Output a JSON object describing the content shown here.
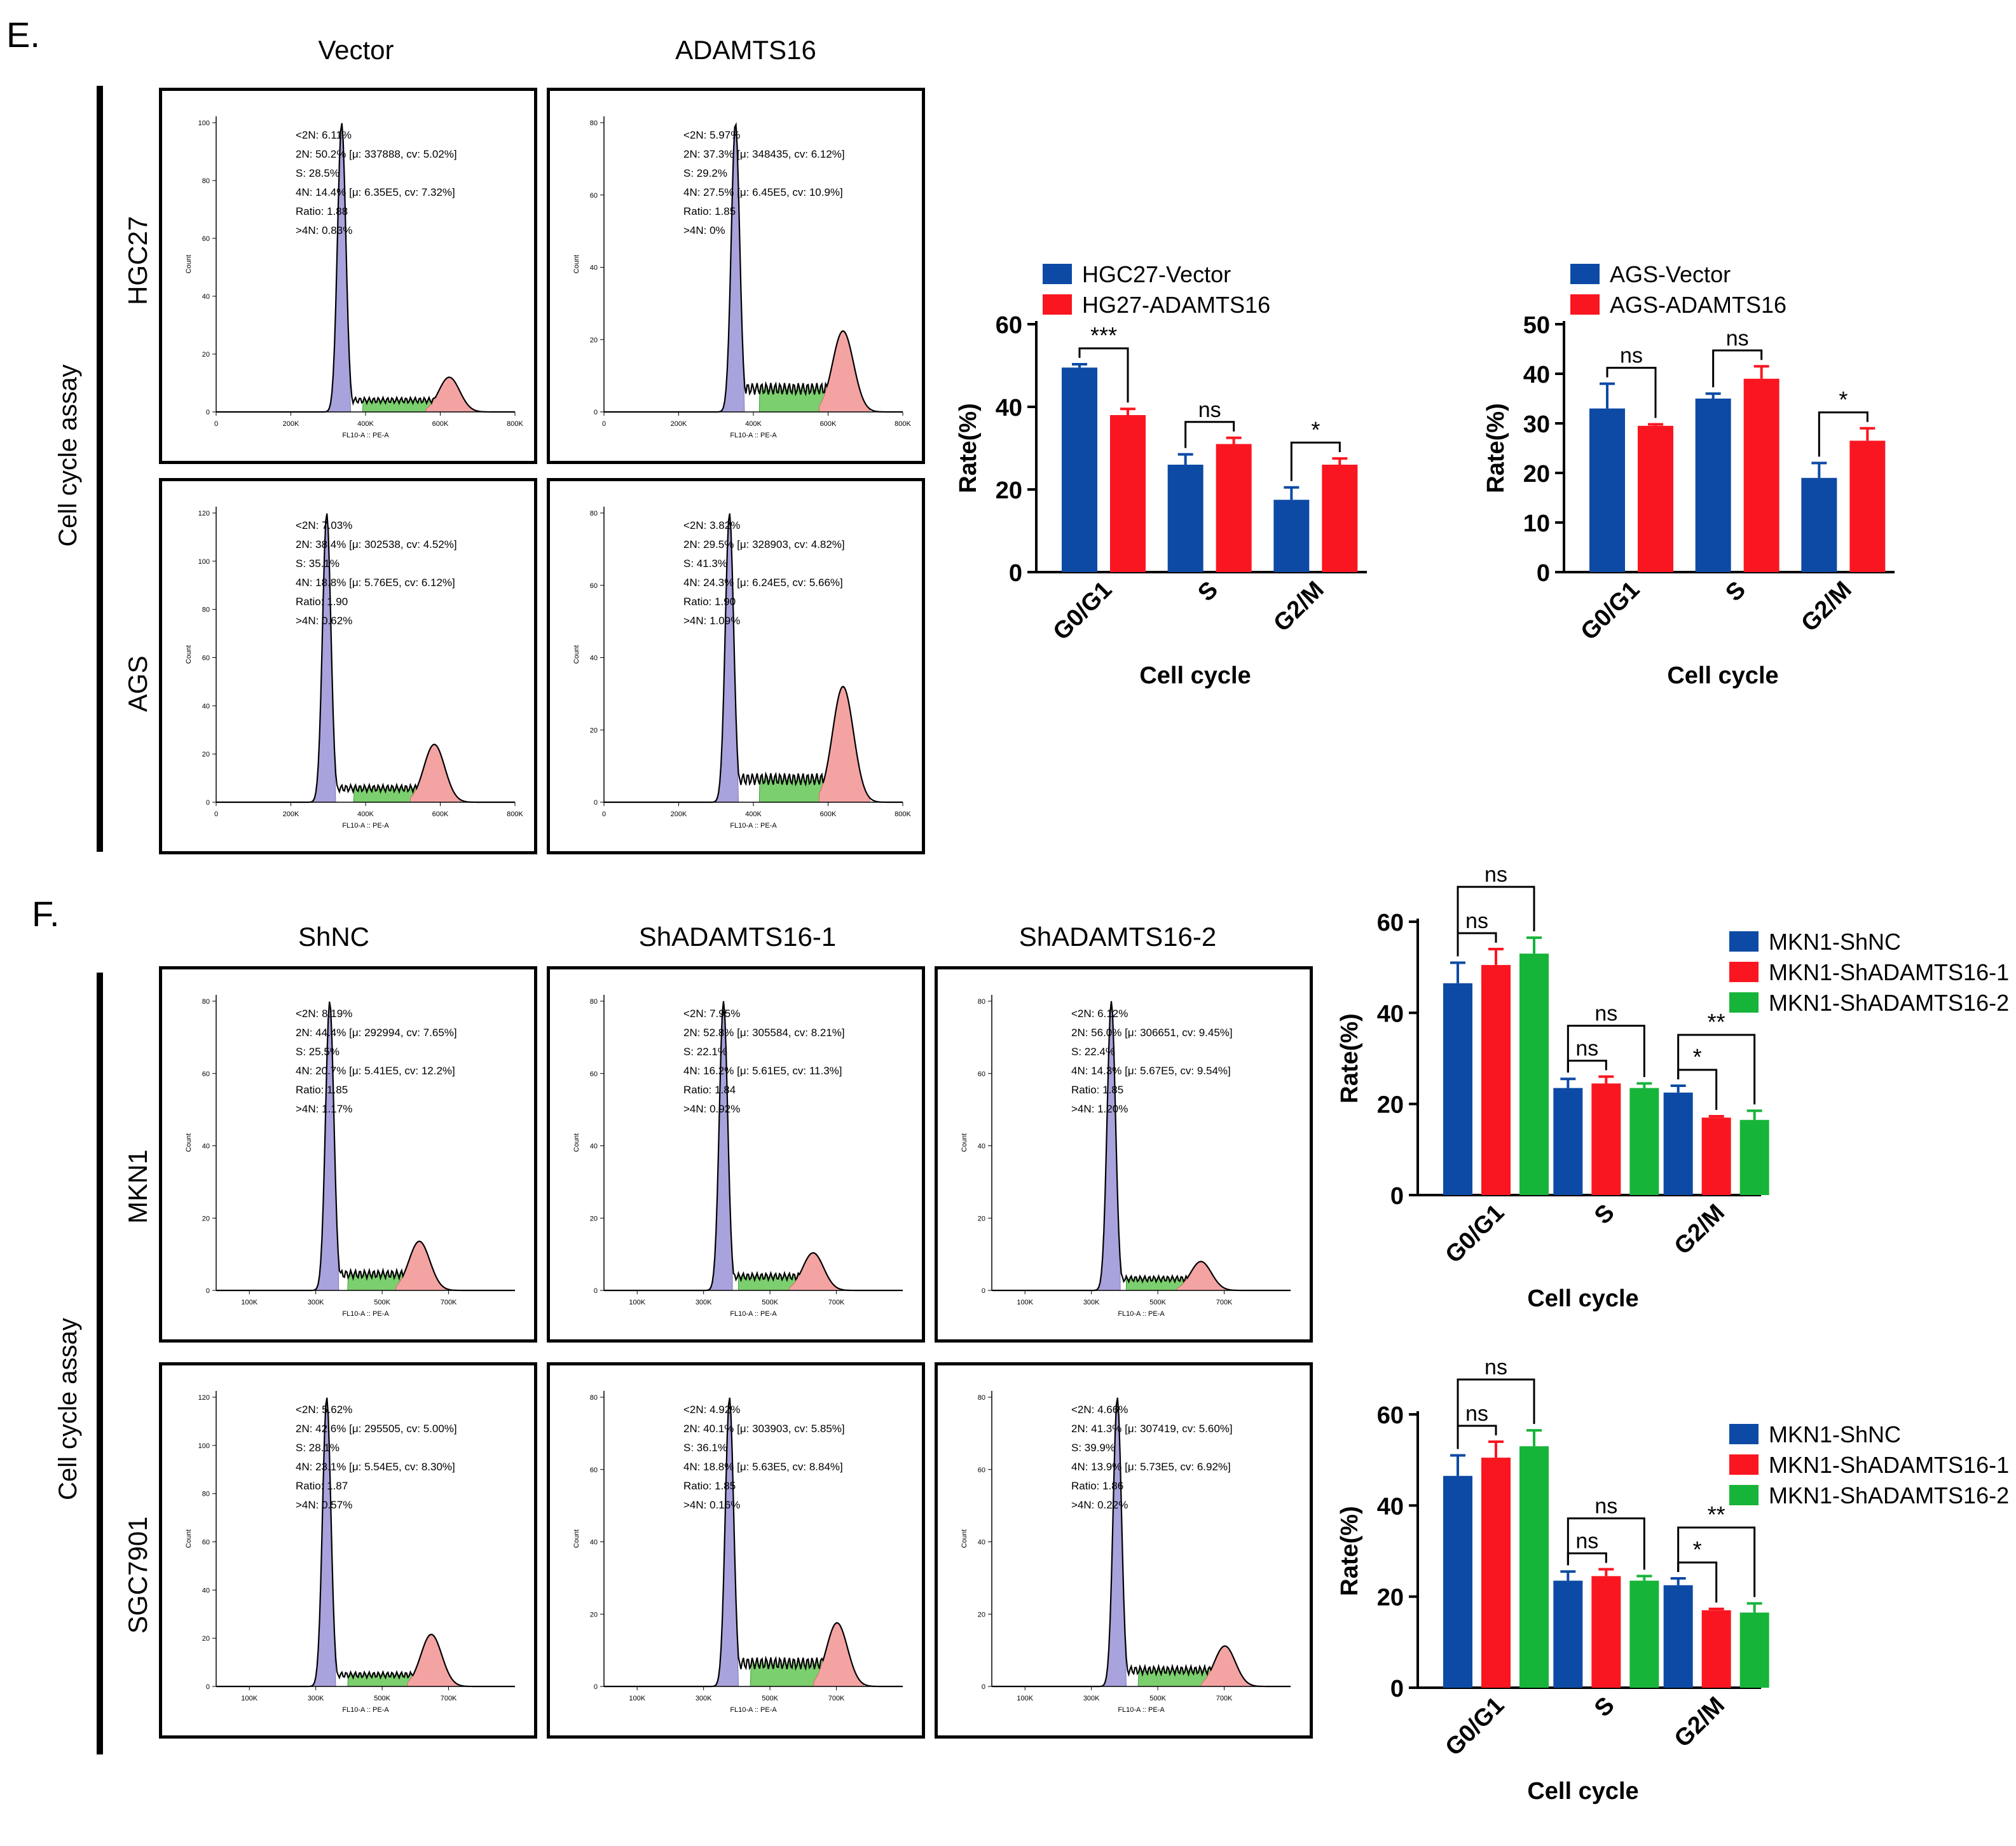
{
  "panels": {
    "e": {
      "letter": "E.",
      "columns": [
        "Vector",
        "ADAMTS16"
      ],
      "rows": [
        "HGC27",
        "AGS"
      ],
      "side_label": "Cell cycle assay"
    },
    "f": {
      "letter": "F.",
      "columns": [
        "ShNC",
        "ShADAMTS16-1",
        "ShADAMTS16-2"
      ],
      "rows": [
        "MKN1",
        "SGC7901"
      ],
      "side_label": "Cell cycle assay"
    }
  },
  "flow": {
    "axis_ylabel": "Count",
    "axis_xlabel_e": "FL10-A :: PE-A",
    "axis_xlabel_f": "FL10-A :: PE-A",
    "xticks_e": [
      "0",
      "200K",
      "400K",
      "600K",
      "800K"
    ],
    "xticks_f": [
      "100K",
      "300K",
      "500K",
      "700K"
    ],
    "plots": [
      {
        "id": "hgc27-vector",
        "stats": [
          "<2N: 6.11%",
          "2N: 50.2%  [μ: 337888, cv: 5.02%]",
          "S: 28.5%",
          "4N: 14.4%  [μ: 6.35E5, cv: 7.32%]",
          "Ratio: 1.88",
          ">4N: 0.83%"
        ],
        "yticks": [
          "0",
          "20",
          "40",
          "60",
          "80",
          "100"
        ],
        "g1": 0.42,
        "s": 0.55,
        "g2": 0.78,
        "p1": 1.0,
        "p2": 0.12,
        "sh": 0.05
      },
      {
        "id": "hgc27-adamts16",
        "stats": [
          "<2N: 5.97%",
          "2N: 37.3%  [μ: 348435, cv: 6.12%]",
          "S: 29.2%",
          "4N: 27.5%  [μ: 6.45E5, cv: 10.9%]",
          "Ratio: 1.85",
          ">4N: 0%"
        ],
        "yticks": [
          "0",
          "20",
          "40",
          "60",
          "80"
        ],
        "g1": 0.44,
        "s": 0.58,
        "g2": 0.8,
        "p1": 1.0,
        "p2": 0.28,
        "sh": 0.1
      },
      {
        "id": "ags-vector",
        "stats": [
          "<2N: 7.03%",
          "2N: 38.4%  [μ: 302538, cv: 4.52%]",
          "S: 35.1%",
          "4N: 18.8%  [μ: 5.76E5, cv: 6.12%]",
          "Ratio: 1.90",
          ">4N: 0.62%"
        ],
        "yticks": [
          "0",
          "20",
          "40",
          "60",
          "80",
          "100",
          "120"
        ],
        "g1": 0.37,
        "s": 0.52,
        "g2": 0.73,
        "p1": 1.0,
        "p2": 0.2,
        "sh": 0.06
      },
      {
        "id": "ags-adamts16",
        "stats": [
          "<2N: 3.82%",
          "2N: 29.5%  [μ: 328903, cv: 4.82%]",
          "S: 41.3%",
          "4N: 24.3%  [μ: 6.24E5, cv: 5.66%]",
          "Ratio: 1.90",
          ">4N: 1.09%"
        ],
        "yticks": [
          "0",
          "20",
          "40",
          "60",
          "80"
        ],
        "g1": 0.42,
        "s": 0.58,
        "g2": 0.8,
        "p1": 1.0,
        "p2": 0.4,
        "sh": 0.1
      },
      {
        "id": "mkn1-shnc",
        "stats": [
          "<2N: 8.19%",
          "2N: 44.4%  [μ: 292994, cv: 7.65%]",
          "S: 25.5%",
          "4N: 20.7%  [μ: 5.41E5, cv: 12.2%]",
          "Ratio: 1.85",
          ">4N: 1.17%"
        ],
        "yticks": [
          "0",
          "20",
          "40",
          "60",
          "80"
        ],
        "g1": 0.38,
        "s": 0.5,
        "g2": 0.68,
        "p1": 1.0,
        "p2": 0.17,
        "sh": 0.07
      },
      {
        "id": "mkn1-sh1",
        "stats": [
          "<2N: 7.95%",
          "2N: 52.8%  [μ: 305584, cv: 8.21%]",
          "S: 22.1%",
          "4N: 16.2%  [μ: 5.61E5, cv: 11.3%]",
          "Ratio: 1.84",
          ">4N: 0.92%"
        ],
        "yticks": [
          "0",
          "20",
          "40",
          "60",
          "80"
        ],
        "g1": 0.4,
        "s": 0.51,
        "g2": 0.7,
        "p1": 1.0,
        "p2": 0.13,
        "sh": 0.06
      },
      {
        "id": "mkn1-sh2",
        "stats": [
          "<2N: 6.12%",
          "2N: 56.0%  [μ: 306651, cv: 9.45%]",
          "S: 22.4%",
          "4N: 14.3%  [μ: 5.67E5, cv: 9.54%]",
          "Ratio: 1.85",
          ">4N: 1.20%"
        ],
        "yticks": [
          "0",
          "20",
          "40",
          "60",
          "80"
        ],
        "g1": 0.4,
        "s": 0.51,
        "g2": 0.7,
        "p1": 1.0,
        "p2": 0.1,
        "sh": 0.05
      },
      {
        "id": "sgc7901-shnc",
        "stats": [
          "<2N: 5.62%",
          "2N: 42.6%  [μ: 295505, cv: 5.00%]",
          "S: 28.1%",
          "4N: 23.1%  [μ: 5.54E5, cv: 8.30%]",
          "Ratio: 1.87",
          ">4N: 0.57%"
        ],
        "yticks": [
          "0",
          "20",
          "40",
          "60",
          "80",
          "100",
          "120"
        ],
        "g1": 0.37,
        "s": 0.5,
        "g2": 0.72,
        "p1": 1.0,
        "p2": 0.18,
        "sh": 0.05
      },
      {
        "id": "sgc7901-sh1",
        "stats": [
          "<2N: 4.92%",
          "2N: 40.1%  [μ: 303903, cv: 5.85%]",
          "S: 36.1%",
          "4N: 18.8%  [μ: 5.63E5, cv: 8.84%]",
          "Ratio: 1.85",
          ">4N: 0.16%"
        ],
        "yticks": [
          "0",
          "20",
          "40",
          "60",
          "80"
        ],
        "g1": 0.42,
        "s": 0.55,
        "g2": 0.78,
        "p1": 1.0,
        "p2": 0.22,
        "sh": 0.1
      },
      {
        "id": "sgc7901-sh2",
        "stats": [
          "<2N: 4.66%",
          "2N: 41.3%  [μ: 307419, cv: 5.60%]",
          "S: 39.9%",
          "4N: 13.9%  [μ: 5.73E5, cv: 6.92%]",
          "Ratio: 1.86",
          ">4N: 0.22%"
        ],
        "yticks": [
          "0",
          "20",
          "40",
          "60",
          "80"
        ],
        "g1": 0.42,
        "s": 0.55,
        "g2": 0.78,
        "p1": 1.0,
        "p2": 0.14,
        "sh": 0.07
      }
    ]
  },
  "chart_data": [
    {
      "id": "hgc27",
      "type": "bar",
      "categories": [
        "G0/G1",
        "S",
        "G2/M"
      ],
      "xlabel": "Cell cycle",
      "ylabel": "Rate(%)",
      "ylim": [
        0,
        60
      ],
      "yticks": [
        0,
        20,
        40,
        60
      ],
      "series": [
        {
          "name": "HGC27-Vector",
          "color": "#0d4aa5",
          "values": [
            49.5,
            26,
            17.5
          ],
          "errors": [
            0.8,
            2.5,
            3
          ]
        },
        {
          "name": "HG27-ADAMTS16",
          "color": "#fa1620",
          "values": [
            38,
            31,
            26
          ],
          "errors": [
            1.5,
            1.5,
            1.5
          ]
        }
      ],
      "sig": [
        {
          "cat": 0,
          "label": "***"
        },
        {
          "cat": 1,
          "label": "ns"
        },
        {
          "cat": 2,
          "label": "*"
        }
      ]
    },
    {
      "id": "ags",
      "type": "bar",
      "categories": [
        "G0/G1",
        "S",
        "G2/M"
      ],
      "xlabel": "Cell cycle",
      "ylabel": "Rate(%)",
      "ylim": [
        0,
        50
      ],
      "yticks": [
        0,
        10,
        20,
        30,
        40,
        50
      ],
      "series": [
        {
          "name": "AGS-Vector",
          "color": "#0d4aa5",
          "values": [
            33,
            35,
            19
          ],
          "errors": [
            5,
            1,
            3
          ]
        },
        {
          "name": "AGS-ADAMTS16",
          "color": "#fa1620",
          "values": [
            29.5,
            39,
            26.5
          ],
          "errors": [
            0.3,
            2.5,
            2.5
          ]
        }
      ],
      "sig": [
        {
          "cat": 0,
          "label": "ns"
        },
        {
          "cat": 1,
          "label": "ns"
        },
        {
          "cat": 2,
          "label": "*"
        }
      ]
    },
    {
      "id": "mkn1",
      "type": "bar",
      "categories": [
        "G0/G1",
        "S",
        "G2/M"
      ],
      "xlabel": "Cell cycle",
      "ylabel": "Rate(%)",
      "ylim": [
        0,
        60
      ],
      "yticks": [
        0,
        20,
        40,
        60
      ],
      "series": [
        {
          "name": "MKN1-ShNC",
          "color": "#0d4aa5",
          "values": [
            46.5,
            23.5,
            22.5
          ],
          "errors": [
            4.5,
            2,
            1.5
          ]
        },
        {
          "name": "MKN1-ShADAMTS16-1",
          "color": "#fa1620",
          "values": [
            50.5,
            24.5,
            17
          ],
          "errors": [
            3.5,
            1.5,
            0.3
          ]
        },
        {
          "name": "MKN1-ShADAMTS16-2",
          "color": "#17b43a",
          "values": [
            53,
            23.5,
            16.5
          ],
          "errors": [
            3.5,
            1,
            2
          ]
        }
      ],
      "sig": [
        {
          "cat": 0,
          "from": 0,
          "to": 1,
          "label": "ns",
          "level": 0
        },
        {
          "cat": 0,
          "from": 0,
          "to": 2,
          "label": "ns",
          "level": 1
        },
        {
          "cat": 1,
          "from": 0,
          "to": 1,
          "label": "ns",
          "level": 0
        },
        {
          "cat": 1,
          "from": 0,
          "to": 2,
          "label": "ns",
          "level": 1
        },
        {
          "cat": 2,
          "from": 0,
          "to": 1,
          "label": "*",
          "level": 0
        },
        {
          "cat": 2,
          "from": 0,
          "to": 2,
          "label": "**",
          "level": 1
        }
      ]
    },
    {
      "id": "sgc7901",
      "type": "bar",
      "categories": [
        "G0/G1",
        "S",
        "G2/M"
      ],
      "xlabel": "Cell cycle",
      "ylabel": "Rate(%)",
      "ylim": [
        0,
        60
      ],
      "yticks": [
        0,
        20,
        40,
        60
      ],
      "series": [
        {
          "name": "MKN1-ShNC",
          "color": "#0d4aa5",
          "values": [
            46.5,
            23.5,
            22.5
          ],
          "errors": [
            4.5,
            2,
            1.5
          ]
        },
        {
          "name": "MKN1-ShADAMTS16-1",
          "color": "#fa1620",
          "values": [
            50.5,
            24.5,
            17
          ],
          "errors": [
            3.5,
            1.5,
            0.3
          ]
        },
        {
          "name": "MKN1-ShADAMTS16-2",
          "color": "#17b43a",
          "values": [
            53,
            23.5,
            16.5
          ],
          "errors": [
            3.5,
            1,
            2
          ]
        }
      ],
      "sig": [
        {
          "cat": 0,
          "from": 0,
          "to": 1,
          "label": "ns",
          "level": 0
        },
        {
          "cat": 0,
          "from": 0,
          "to": 2,
          "label": "ns",
          "level": 1
        },
        {
          "cat": 1,
          "from": 0,
          "to": 1,
          "label": "ns",
          "level": 0
        },
        {
          "cat": 1,
          "from": 0,
          "to": 2,
          "label": "ns",
          "level": 1
        },
        {
          "cat": 2,
          "from": 0,
          "to": 1,
          "label": "*",
          "level": 0
        },
        {
          "cat": 2,
          "from": 0,
          "to": 2,
          "label": "**",
          "level": 1
        }
      ]
    }
  ]
}
